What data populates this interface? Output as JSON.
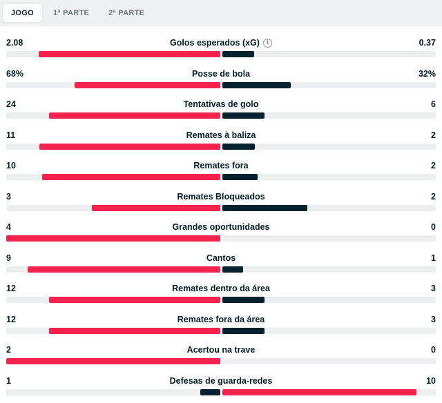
{
  "tabs": [
    {
      "label": "JOGO",
      "active": true
    },
    {
      "label": "1ª PARTE",
      "active": false
    },
    {
      "label": "2ª PARTE",
      "active": false
    }
  ],
  "colors": {
    "home": "#f5224e",
    "away": "#05212d",
    "track": "#eceef0"
  },
  "stats": [
    {
      "label": "Golos esperados (xG)",
      "home": "2.08",
      "away": "0.37",
      "home_val": 2.08,
      "away_val": 0.37,
      "info": true
    },
    {
      "label": "Posse de bola",
      "home": "68%",
      "away": "32%",
      "home_val": 68,
      "away_val": 32
    },
    {
      "label": "Tentativas de golo",
      "home": "24",
      "away": "6",
      "home_val": 24,
      "away_val": 6
    },
    {
      "label": "Remates à baliza",
      "home": "11",
      "away": "2",
      "home_val": 11,
      "away_val": 2
    },
    {
      "label": "Remates fora",
      "home": "10",
      "away": "2",
      "home_val": 10,
      "away_val": 2
    },
    {
      "label": "Remates Bloqueados",
      "home": "3",
      "away": "2",
      "home_val": 3,
      "away_val": 2
    },
    {
      "label": "Grandes oportunidades",
      "home": "4",
      "away": "0",
      "home_val": 4,
      "away_val": 0
    },
    {
      "label": "Cantos",
      "home": "9",
      "away": "1",
      "home_val": 9,
      "away_val": 1
    },
    {
      "label": "Remates dentro da área",
      "home": "12",
      "away": "3",
      "home_val": 12,
      "away_val": 3
    },
    {
      "label": "Remates fora da área",
      "home": "12",
      "away": "3",
      "home_val": 12,
      "away_val": 3
    },
    {
      "label": "Acertou na trave",
      "home": "2",
      "away": "0",
      "home_val": 2,
      "away_val": 0
    },
    {
      "label": "Defesas de guarda-redes",
      "home": "1",
      "away": "10",
      "home_val": 1,
      "away_val": 10
    }
  ]
}
